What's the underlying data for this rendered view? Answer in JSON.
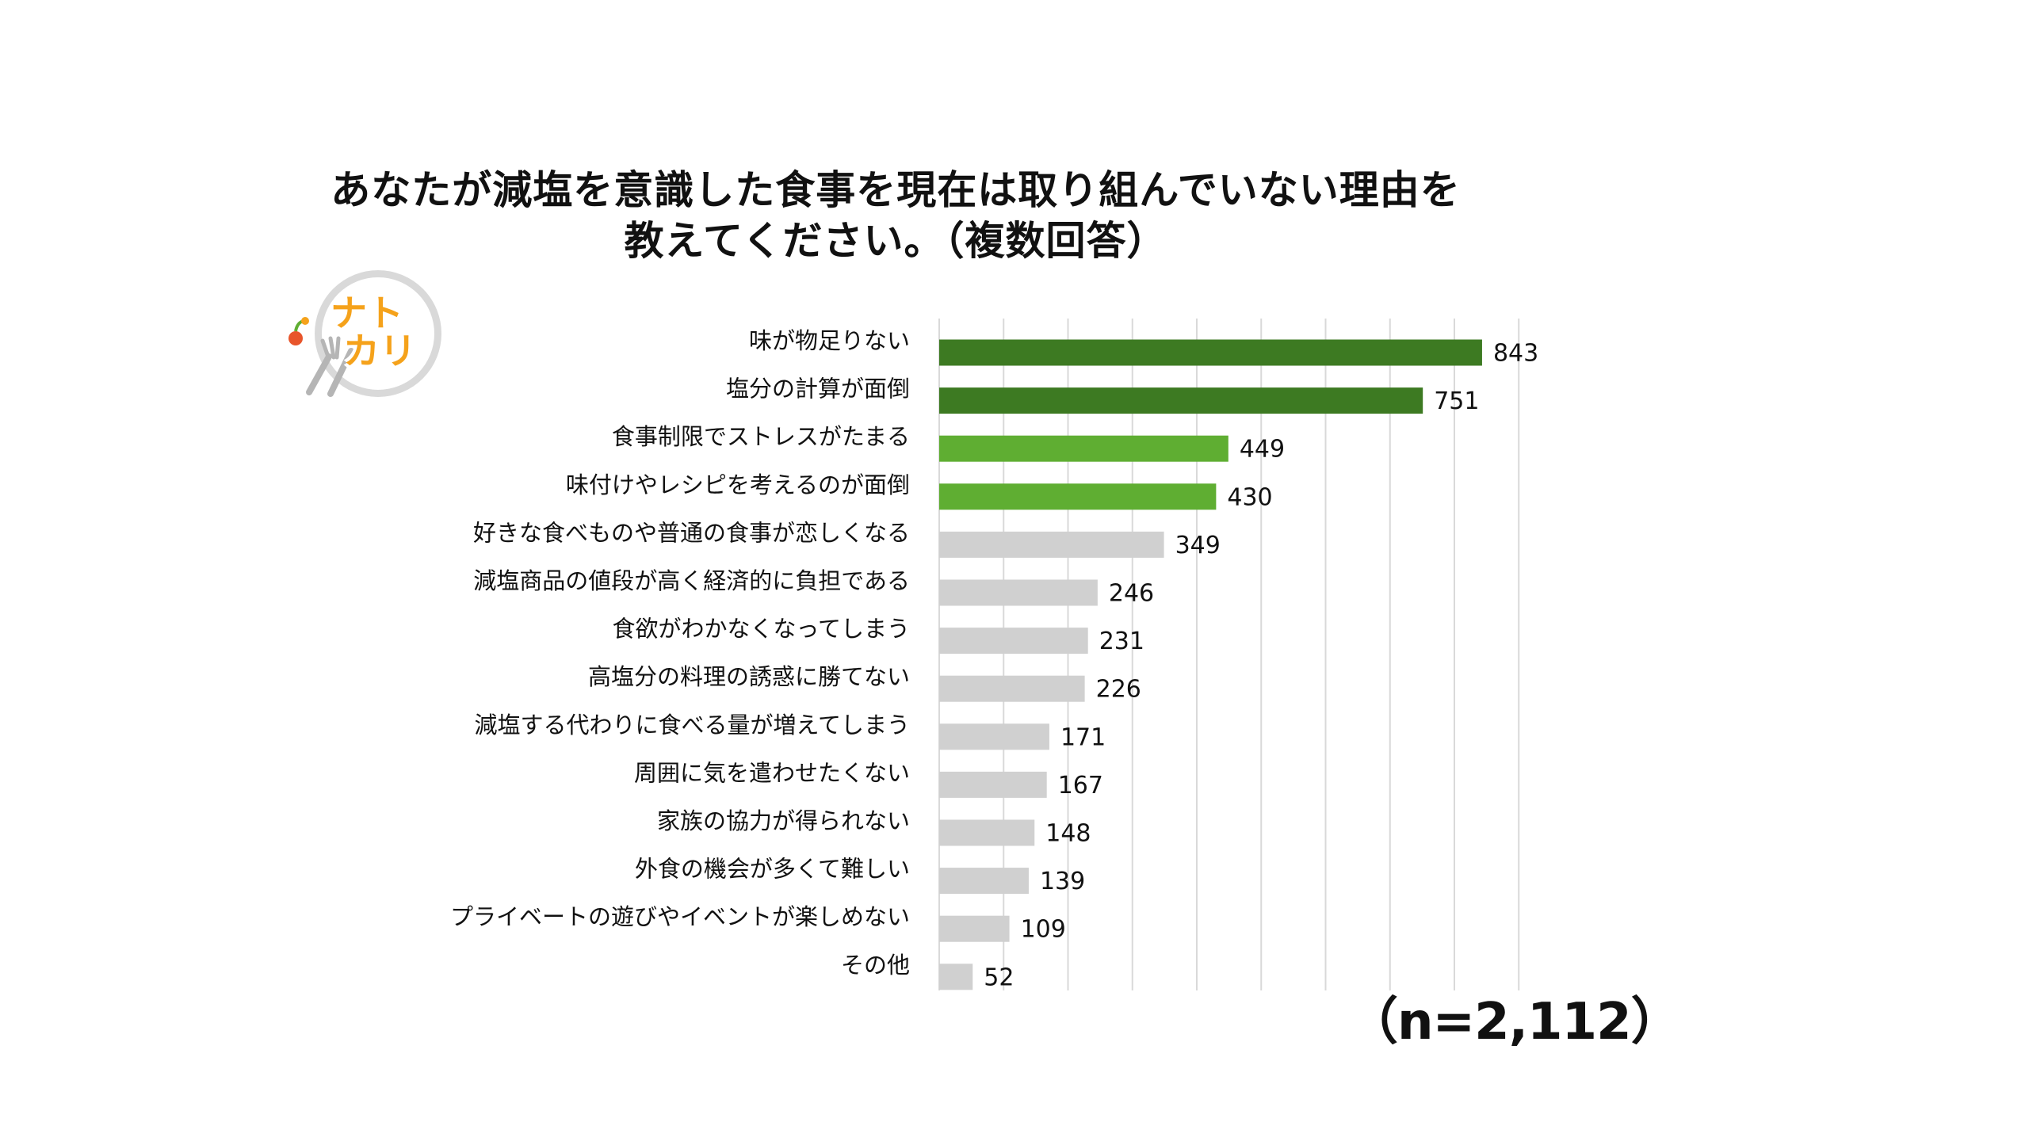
{
  "title_line1": "あなたが減塩を意識した食事を現在は取り組んでいない理由を",
  "title_line2": "教えてください。（複数回答）",
  "logo": {
    "text_line1": "ナト",
    "text_line2": "カリ"
  },
  "n_label": "（n=2,112）",
  "colors": {
    "dark_green": "#3d7a22",
    "light_green": "#5fae32",
    "gray": "#d0d0d0",
    "grid": "#d9d9d9"
  },
  "chart_data": {
    "type": "bar",
    "orientation": "horizontal",
    "title": "あなたが減塩を意識した食事を現在は取り組んでいない理由を教えてください。（複数回答）",
    "categories": [
      "味が物足りない",
      "塩分の計算が面倒",
      "食事制限でストレスがたまる",
      "味付けやレシピを考えるのが面倒",
      "好きな食べものや普通の食事が恋しくなる",
      "減塩商品の値段が高く経済的に負担である",
      "食欲がわかなくなってしまう",
      "高塩分の料理の誘惑に勝てない",
      "減塩する代わりに食べる量が増えてしまう",
      "周囲に気を遣わせたくない",
      "家族の協力が得られない",
      "外食の機会が多くて難しい",
      "プライベートの遊びやイベントが楽しめない",
      "その他"
    ],
    "values": [
      843,
      751,
      449,
      430,
      349,
      246,
      231,
      226,
      171,
      167,
      148,
      139,
      109,
      52
    ],
    "bar_color_groups": [
      "dark_green",
      "dark_green",
      "light_green",
      "light_green",
      "gray",
      "gray",
      "gray",
      "gray",
      "gray",
      "gray",
      "gray",
      "gray",
      "gray",
      "gray"
    ],
    "xlim": [
      0,
      900
    ],
    "grid": true,
    "data_labels": true
  }
}
